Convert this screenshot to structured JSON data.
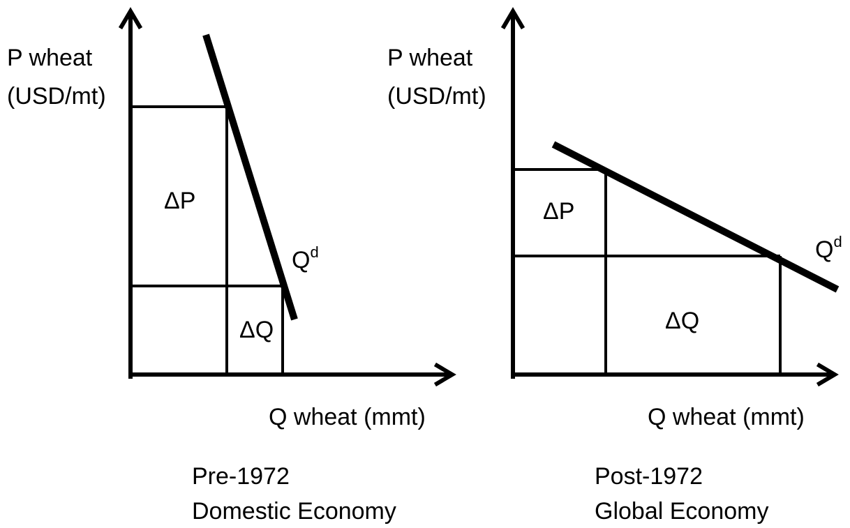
{
  "panels": [
    {
      "y_label": [
        "P wheat",
        "(USD/mt)"
      ],
      "x_label": "Q wheat (mmt)",
      "delta_p": "ΔP",
      "delta_q": "ΔQ",
      "curve_label": {
        "text": "Q",
        "superscript": "d"
      },
      "caption": [
        "Pre-1972",
        "Domestic Economy"
      ]
    },
    {
      "y_label": [
        "P wheat",
        "(USD/mt)"
      ],
      "x_label": "Q wheat (mmt)",
      "delta_p": "ΔP",
      "delta_q": "ΔQ",
      "curve_label": {
        "text": "Q",
        "superscript": "d"
      },
      "caption": [
        "Post-1972",
        "Global Economy"
      ]
    }
  ]
}
